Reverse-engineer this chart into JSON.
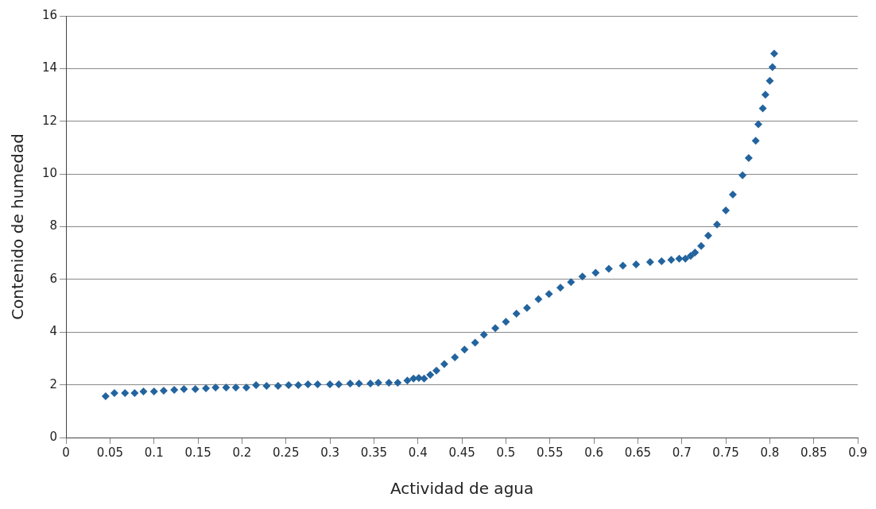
{
  "chart_data": {
    "type": "scatter",
    "xlabel": "Actividad de agua",
    "ylabel": "Contenido de humedad",
    "xlim": [
      0,
      0.9
    ],
    "xticks": [
      0,
      0.05,
      0.1,
      0.15,
      0.2,
      0.25,
      0.3,
      0.35,
      0.4,
      0.45,
      0.5,
      0.55,
      0.6,
      0.65,
      0.7,
      0.75,
      0.8,
      0.85,
      0.9
    ],
    "ylim": [
      0,
      16
    ],
    "yticks": [
      0,
      2,
      4,
      6,
      8,
      10,
      12,
      14,
      16
    ],
    "grid": "y",
    "legend": false,
    "marker": "diamond",
    "series": [
      {
        "color": "#23649e",
        "x": [
          0.045,
          0.055,
          0.067,
          0.078,
          0.088,
          0.1,
          0.111,
          0.123,
          0.134,
          0.147,
          0.159,
          0.17,
          0.182,
          0.193,
          0.205,
          0.216,
          0.228,
          0.241,
          0.253,
          0.264,
          0.275,
          0.286,
          0.3,
          0.31,
          0.323,
          0.333,
          0.346,
          0.355,
          0.367,
          0.377,
          0.388,
          0.395,
          0.401,
          0.407,
          0.414,
          0.421,
          0.43,
          0.442,
          0.453,
          0.465,
          0.475,
          0.488,
          0.5,
          0.512,
          0.524,
          0.537,
          0.549,
          0.562,
          0.574,
          0.587,
          0.602,
          0.617,
          0.633,
          0.648,
          0.664,
          0.677,
          0.688,
          0.697,
          0.704,
          0.71,
          0.715,
          0.722,
          0.73,
          0.74,
          0.75,
          0.758,
          0.769,
          0.776,
          0.784,
          0.787,
          0.792,
          0.795,
          0.8,
          0.803,
          0.805
        ],
        "values": [
          1.57,
          1.69,
          1.69,
          1.69,
          1.75,
          1.75,
          1.78,
          1.81,
          1.84,
          1.84,
          1.87,
          1.9,
          1.9,
          1.9,
          1.9,
          1.99,
          1.96,
          1.96,
          1.99,
          1.99,
          2.02,
          2.02,
          2.02,
          2.02,
          2.05,
          2.05,
          2.05,
          2.08,
          2.08,
          2.08,
          2.16,
          2.24,
          2.26,
          2.24,
          2.38,
          2.54,
          2.79,
          3.04,
          3.34,
          3.6,
          3.9,
          4.15,
          4.39,
          4.7,
          4.92,
          5.25,
          5.45,
          5.69,
          5.9,
          6.11,
          6.25,
          6.4,
          6.52,
          6.57,
          6.66,
          6.69,
          6.74,
          6.79,
          6.79,
          6.89,
          7.02,
          7.27,
          7.66,
          8.08,
          8.62,
          9.22,
          9.95,
          10.61,
          11.26,
          11.89,
          12.49,
          13.01,
          13.54,
          14.06,
          14.57
        ]
      }
    ]
  }
}
